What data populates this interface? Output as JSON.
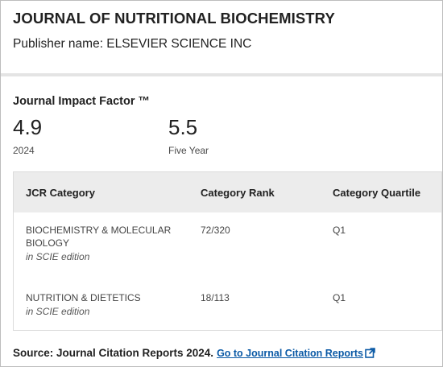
{
  "journal": {
    "title": "JOURNAL OF NUTRITIONAL BIOCHEMISTRY",
    "publisher": "Publisher name: ELSEVIER SCIENCE INC"
  },
  "impact": {
    "heading": "Journal Impact Factor ™",
    "current_value": "4.9",
    "current_label": "2024",
    "five_year_value": "5.5",
    "five_year_label": "Five Year"
  },
  "table": {
    "headers": [
      "JCR Category",
      "Category Rank",
      "Category Quartile"
    ],
    "rows": [
      {
        "category_line1": "BIOCHEMISTRY & MOLECULAR",
        "category_line2": "BIOLOGY",
        "edition": "in SCIE edition",
        "rank": "72/320",
        "quartile": "Q1"
      },
      {
        "category_line1": "NUTRITION & DIETETICS",
        "category_line2": "",
        "edition": "in SCIE edition",
        "rank": "18/113",
        "quartile": "Q1"
      }
    ]
  },
  "source": {
    "text": "Source: Journal Citation Reports  2024.",
    "link": "Go to Journal Citation Reports"
  },
  "colors": {
    "link": "#0b5aa6",
    "header_bg": "#ececec",
    "divider": "#e4e4e4"
  },
  "icons": {
    "external": "external-link-icon"
  }
}
